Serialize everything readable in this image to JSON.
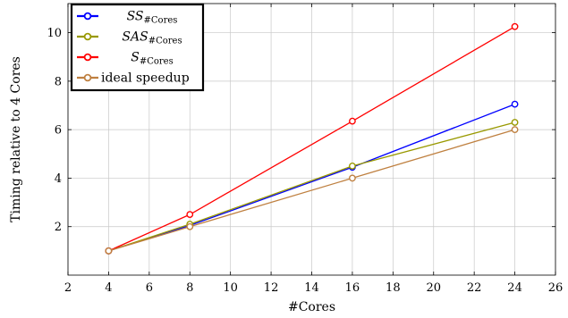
{
  "chart_data": {
    "type": "line",
    "title": "",
    "xlabel": "#Cores",
    "ylabel": "Timing relative to 4 Cores",
    "xlim": [
      2,
      26
    ],
    "ylim": [
      0,
      11.2
    ],
    "xticks": [
      2,
      4,
      6,
      8,
      10,
      12,
      14,
      16,
      18,
      20,
      22,
      24,
      26
    ],
    "yticks": [
      2,
      4,
      6,
      8,
      10
    ],
    "grid": true,
    "legend_position": "top-left",
    "series": [
      {
        "name": "SS",
        "name_main": "SS",
        "name_sub": "#Cores",
        "color": "#0000ff",
        "x": [
          4,
          8,
          16,
          24
        ],
        "y": [
          1.0,
          2.05,
          4.45,
          7.05
        ]
      },
      {
        "name": "SAS",
        "name_main": "SAS",
        "name_sub": "#Cores",
        "color": "#999900",
        "x": [
          4,
          8,
          16,
          24
        ],
        "y": [
          1.0,
          2.1,
          4.5,
          6.3
        ]
      },
      {
        "name": "S",
        "name_main": "S",
        "name_sub": "#Cores",
        "color": "#ff0000",
        "x": [
          4,
          8,
          16,
          24
        ],
        "y": [
          1.0,
          2.5,
          6.35,
          10.25
        ]
      },
      {
        "name": "ideal speedup",
        "name_main": "ideal speedup",
        "name_sub": "",
        "color": "#bf8040",
        "x": [
          4,
          8,
          16,
          24
        ],
        "y": [
          1.0,
          2.0,
          4.0,
          6.0
        ]
      }
    ]
  }
}
